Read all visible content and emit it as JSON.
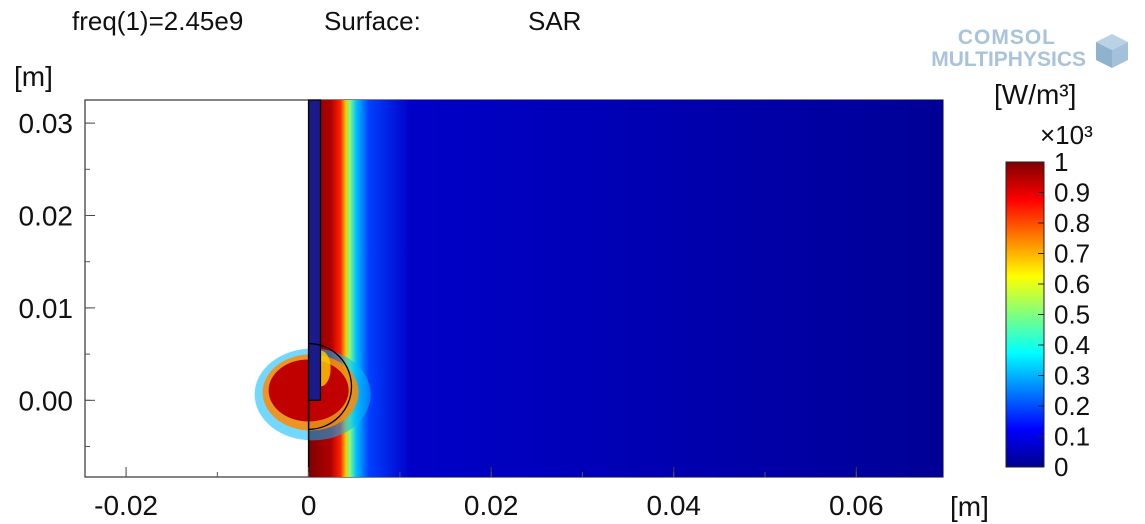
{
  "header": {
    "freq": "freq(1)=2.45e9",
    "surface_label": "Surface:",
    "quantity": "SAR"
  },
  "logo": {
    "line1": "COMSOL",
    "line2": "MULTIPHYSICS",
    "reg": "®"
  },
  "chart_data": {
    "type": "heatmap",
    "x_unit": "[m]",
    "y_unit": "[m]",
    "xlim": [
      -0.0245,
      0.0695
    ],
    "ylim": [
      -0.0083,
      0.0325
    ],
    "x_ticks": [
      -0.02,
      0,
      0.02,
      0.04,
      0.06
    ],
    "x_tick_labels": [
      "-0.02",
      "0",
      "0.02",
      "0.04",
      "0.06"
    ],
    "y_ticks": [
      0.0,
      0.01,
      0.02,
      0.03
    ],
    "y_tick_labels": [
      "0.00",
      "0.01",
      "0.02",
      "0.03"
    ],
    "domain_x_range": [
      0,
      0.0695
    ],
    "colorbar": {
      "unit": "[W/m³]",
      "multiplier": "×10³",
      "range": [
        0,
        1
      ],
      "ticks": [
        1,
        0.9,
        0.8,
        0.7,
        0.6,
        0.5,
        0.4,
        0.3,
        0.2,
        0.1,
        0
      ],
      "tick_labels": [
        "1",
        "0.9",
        "0.8",
        "0.7",
        "0.6",
        "0.5",
        "0.4",
        "0.3",
        "0.2",
        "0.1",
        "0"
      ],
      "colormap": "jet"
    },
    "antenna": {
      "x_range": [
        0,
        0.0013
      ],
      "y_range": [
        0,
        0.0325
      ]
    },
    "circle": {
      "cx": 0,
      "cy": 0.0015,
      "r": 0.0047
    }
  }
}
